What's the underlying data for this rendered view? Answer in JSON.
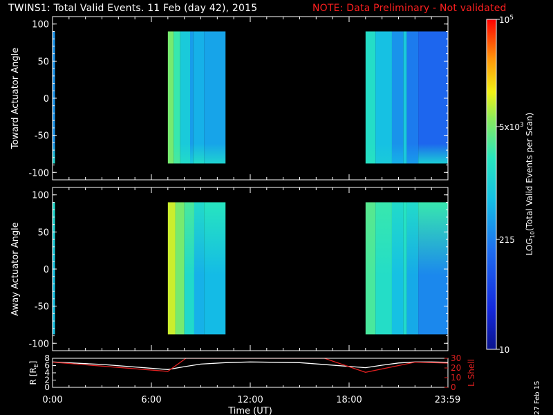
{
  "header": {
    "title": "TWINS1: Total Valid Events. 11 Feb (day  42), 2015",
    "note": "NOTE: Data Preliminary - Not validated",
    "note_color": "#ff2020"
  },
  "stamp": "27 Feb 15",
  "chart_data": [
    {
      "type": "heatmap",
      "ylabel": "Toward Actuator Angle",
      "ylim": [
        -110,
        110
      ],
      "yticks": [
        100,
        50,
        0,
        -50,
        -100
      ],
      "y_range": [
        -88,
        90
      ],
      "x_unit": "hours UT",
      "xlim": [
        0,
        24
      ],
      "coverage_hours": [
        [
          0.0,
          0.15
        ],
        [
          7.0,
          10.5
        ],
        [
          19.0,
          23.99
        ]
      ],
      "columns": [
        {
          "x0": 0.0,
          "x1": 0.15,
          "value": 300,
          "bottom_value": 1500
        },
        {
          "x0": 7.0,
          "x1": 7.35,
          "value": 5000,
          "bottom_value": 5000
        },
        {
          "x0": 7.35,
          "x1": 7.75,
          "value": 2500,
          "bottom_value": 3000
        },
        {
          "x0": 7.75,
          "x1": 8.35,
          "value": 900,
          "bottom_value": 1500
        },
        {
          "x0": 8.35,
          "x1": 8.55,
          "value": 350,
          "bottom_value": 900
        },
        {
          "x0": 8.55,
          "x1": 9.2,
          "value": 500,
          "bottom_value": 1500
        },
        {
          "x0": 9.2,
          "x1": 10.5,
          "value": 400,
          "bottom_value": 1200
        },
        {
          "x0": 19.0,
          "x1": 19.6,
          "value": 1600,
          "bottom_value": 1800
        },
        {
          "x0": 19.6,
          "x1": 20.6,
          "value": 700,
          "bottom_value": 900
        },
        {
          "x0": 20.6,
          "x1": 21.3,
          "value": 300,
          "bottom_value": 500
        },
        {
          "x0": 21.3,
          "x1": 21.5,
          "value": 900,
          "bottom_value": 900
        },
        {
          "x0": 21.5,
          "x1": 22.2,
          "value": 200,
          "bottom_value": 350
        },
        {
          "x0": 22.2,
          "x1": 23.99,
          "value": 130,
          "bottom_value": 1000
        }
      ]
    },
    {
      "type": "heatmap",
      "ylabel": "Away Actuator Angle",
      "ylim": [
        -110,
        110
      ],
      "yticks": [
        100,
        50,
        0,
        -50,
        -100
      ],
      "y_range": [
        -88,
        90
      ],
      "x_unit": "hours UT",
      "xlim": [
        0,
        24
      ],
      "coverage_hours": [
        [
          0.0,
          0.15
        ],
        [
          7.0,
          10.5
        ],
        [
          19.0,
          23.99
        ]
      ],
      "columns": [
        {
          "x0": 0.0,
          "x1": 0.15,
          "value": 700,
          "top_value": 1500
        },
        {
          "x0": 7.0,
          "x1": 7.45,
          "value": 10000,
          "top_value": 10000
        },
        {
          "x0": 7.45,
          "x1": 8.0,
          "value": 5000,
          "top_value": 5000
        },
        {
          "x0": 8.0,
          "x1": 8.6,
          "value": 1400,
          "top_value": 3000
        },
        {
          "x0": 8.6,
          "x1": 9.2,
          "value": 500,
          "top_value": 1500
        },
        {
          "x0": 9.2,
          "x1": 10.5,
          "value": 600,
          "top_value": 2000
        },
        {
          "x0": 19.0,
          "x1": 19.6,
          "value": 3000,
          "top_value": 3500
        },
        {
          "x0": 19.6,
          "x1": 20.6,
          "value": 1600,
          "top_value": 2500
        },
        {
          "x0": 20.6,
          "x1": 21.3,
          "value": 700,
          "top_value": 1500
        },
        {
          "x0": 21.3,
          "x1": 21.5,
          "value": 1500,
          "top_value": 2000
        },
        {
          "x0": 21.5,
          "x1": 22.2,
          "value": 450,
          "top_value": 1500
        },
        {
          "x0": 22.2,
          "x1": 23.99,
          "value": 250,
          "top_value": 2500
        }
      ]
    },
    {
      "type": "line",
      "xlabel": "Time (UT)",
      "xticks": [
        "0:00",
        "6:00",
        "12:00",
        "18:00",
        "23:59"
      ],
      "xtick_hours": [
        0,
        6,
        12,
        18,
        23.98
      ],
      "xlim": [
        0,
        24
      ],
      "ylabel_left": "R [R",
      "ylabel_left_sub": "E",
      "ylabel_left_close": "]",
      "ylim_left": [
        0,
        8
      ],
      "yticks_left": [
        0,
        2,
        4,
        6,
        8
      ],
      "ylabel_right": "L Shell",
      "ylim_right": [
        0,
        30
      ],
      "yticks_right": [
        0,
        10,
        20,
        30
      ],
      "series": [
        {
          "axis": "left",
          "color": "#ffffff",
          "x": [
            0,
            3,
            7,
            8,
            9,
            10.5,
            12,
            15,
            19,
            20,
            21,
            22,
            23,
            24
          ],
          "y": [
            7.0,
            6.3,
            4.9,
            5.7,
            6.4,
            6.8,
            7.0,
            6.8,
            5.4,
            6.1,
            6.7,
            7.0,
            7.0,
            6.9
          ]
        },
        {
          "axis": "right",
          "color": "#e02020",
          "x": [
            0,
            7,
            8.1,
            16.5,
            19.0,
            22.0,
            23.99
          ],
          "y": [
            26.0,
            16.5,
            30.0,
            30.0,
            15.5,
            26.0,
            25.0
          ]
        }
      ]
    }
  ],
  "colorbar": {
    "scale": "log",
    "min": 10,
    "max": 100000,
    "label": "LOG",
    "label_sub": "10",
    "label_rest": "(Total Valid Events per Scan)",
    "tick_labels": [
      {
        "value": 10,
        "text": "10"
      },
      {
        "value": 215,
        "text": "215"
      },
      {
        "value": 5000,
        "text": "5x10",
        "sup": "3"
      },
      {
        "value": 100000,
        "text": "10",
        "sup": "5"
      }
    ]
  }
}
